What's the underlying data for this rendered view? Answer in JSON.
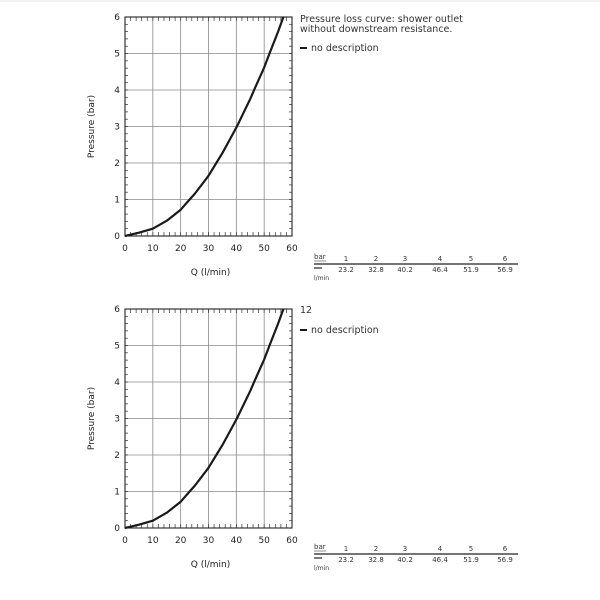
{
  "chart_data": [
    {
      "type": "line",
      "note": [
        "Pressure loss curve: shower outlet",
        "without downstream resistance."
      ],
      "xlabel": "Q (l/min)",
      "ylabel": "Pressure (bar)",
      "xlim": [
        0,
        60
      ],
      "ylim": [
        0,
        6
      ],
      "x_ticks": [
        0,
        10,
        20,
        30,
        40,
        50,
        60
      ],
      "y_ticks": [
        0,
        1,
        2,
        3,
        4,
        5,
        6
      ],
      "grid": true,
      "legend_position": "top-right",
      "series": [
        {
          "name": "no description",
          "x": [
            0,
            5,
            10,
            15,
            20,
            23.2,
            25,
            30,
            32.8,
            35,
            40.2,
            45,
            46.4,
            50,
            51.9,
            55,
            56.9
          ],
          "y": [
            0,
            0.09,
            0.2,
            0.42,
            0.72,
            1,
            1.15,
            1.65,
            2,
            2.27,
            3,
            3.76,
            4,
            4.62,
            5,
            5.6,
            6
          ]
        }
      ],
      "table": {
        "row1_label": "bar",
        "row2_label": "l/min",
        "columns": [
          {
            "bar": "1",
            "lmin": "23.2"
          },
          {
            "bar": "2",
            "lmin": "32.8"
          },
          {
            "bar": "3",
            "lmin": "40.2"
          },
          {
            "bar": "4",
            "lmin": "46.4"
          },
          {
            "bar": "5",
            "lmin": "51.9"
          },
          {
            "bar": "6",
            "lmin": "56.9"
          }
        ]
      }
    },
    {
      "type": "line",
      "note": [
        "12"
      ],
      "xlabel": "Q (l/min)",
      "ylabel": "Pressure (bar)",
      "xlim": [
        0,
        60
      ],
      "ylim": [
        0,
        6
      ],
      "x_ticks": [
        0,
        10,
        20,
        30,
        40,
        50,
        60
      ],
      "y_ticks": [
        0,
        1,
        2,
        3,
        4,
        5,
        6
      ],
      "grid": true,
      "legend_position": "top-right",
      "series": [
        {
          "name": "no description",
          "x": [
            0,
            5,
            10,
            15,
            20,
            23.2,
            25,
            30,
            32.8,
            35,
            40.2,
            45,
            46.4,
            50,
            51.9,
            55,
            56.9
          ],
          "y": [
            0,
            0.09,
            0.2,
            0.42,
            0.72,
            1,
            1.15,
            1.65,
            2,
            2.27,
            3,
            3.76,
            4,
            4.62,
            5,
            5.6,
            6
          ]
        }
      ],
      "table": {
        "row1_label": "bar",
        "row2_label": "l/min",
        "columns": [
          {
            "bar": "1",
            "lmin": "23.2"
          },
          {
            "bar": "2",
            "lmin": "32.8"
          },
          {
            "bar": "3",
            "lmin": "40.2"
          },
          {
            "bar": "4",
            "lmin": "46.4"
          },
          {
            "bar": "5",
            "lmin": "51.9"
          },
          {
            "bar": "6",
            "lmin": "56.9"
          }
        ]
      }
    }
  ]
}
